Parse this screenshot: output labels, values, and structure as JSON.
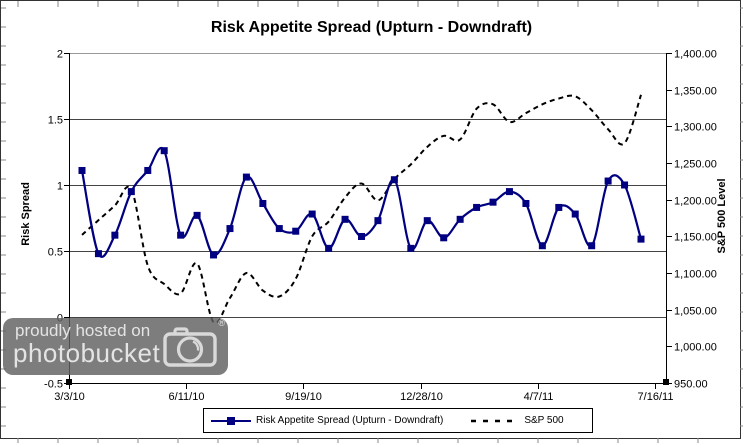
{
  "watermark": {
    "line1": "proudly hosted on",
    "line2": "photobucket"
  },
  "chart_data": {
    "type": "line",
    "title": "Risk Appetite Spread (Upturn - Downdraft)",
    "grid": "horizontal",
    "legend_position": "bottom",
    "x_tick_labels": [
      "3/3/10",
      "6/11/10",
      "9/19/10",
      "12/28/10",
      "4/7/11",
      "7/16/11"
    ],
    "left_axis": {
      "label": "Risk Spread",
      "min": -0.5,
      "max": 2,
      "ticks": [
        2,
        1.5,
        1,
        0.5,
        0,
        -0.5
      ],
      "tick_labels": [
        "2",
        "1.5",
        "1",
        "0.5",
        "0",
        "-0.5"
      ]
    },
    "right_axis": {
      "label": "S&P 500 Level",
      "min": 950,
      "max": 1400,
      "ticks": [
        1400,
        1350,
        1300,
        1250,
        1200,
        1150,
        1100,
        1050,
        1000,
        950
      ],
      "tick_labels": [
        "1,400.00",
        "1,350.00",
        "1,300.00",
        "1,250.00",
        "1,200.00",
        "1,150.00",
        "1,100.00",
        "1,050.00",
        "1,000.00",
        "950.00"
      ]
    },
    "series": [
      {
        "name": "Risk Appetite Spread (Upturn - Downdraft)",
        "axis": "left",
        "color": "#000080",
        "marker": "square",
        "line_style": "solid",
        "values": [
          1.11,
          0.48,
          0.62,
          0.95,
          1.11,
          1.26,
          0.62,
          0.77,
          0.47,
          0.67,
          1.06,
          0.86,
          0.67,
          0.65,
          0.78,
          0.52,
          0.74,
          0.61,
          0.73,
          1.04,
          0.52,
          0.73,
          0.6,
          0.74,
          0.83,
          0.87,
          0.95,
          0.86,
          0.54,
          0.83,
          0.78,
          0.54,
          1.03,
          1.0,
          0.59
        ]
      },
      {
        "name": "S&P 500",
        "axis": "right",
        "color": "#000000",
        "marker": "none",
        "line_style": "dashed",
        "values": [
          1152,
          1172,
          1192,
          1214,
          1110,
          1085,
          1072,
          1113,
          1033,
          1066,
          1100,
          1076,
          1068,
          1092,
          1150,
          1170,
          1203,
          1222,
          1199,
          1228,
          1248,
          1272,
          1287,
          1282,
          1324,
          1330,
          1306,
          1318,
          1330,
          1338,
          1341,
          1322,
          1296,
          1277,
          1343
        ]
      }
    ]
  }
}
